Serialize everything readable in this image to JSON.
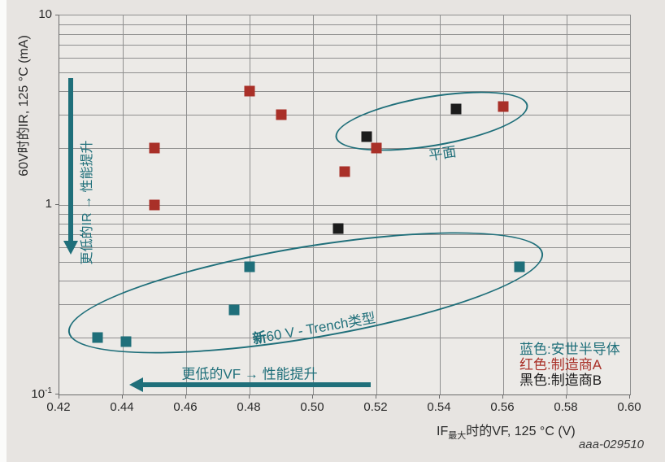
{
  "figure": {
    "watermark": "aaa-029510",
    "colors": {
      "teal": "#1f6f7a",
      "red": "#a93028",
      "black": "#1c1c1c",
      "grid": "#8f8f8f",
      "plot_bg": "#eceae7",
      "page_bg": "#e7e4e1"
    }
  },
  "chart_data": {
    "type": "scatter",
    "title": "",
    "ylabel": "60V时的IR, 125 °C (mA)",
    "xlabel": {
      "pre": "IF",
      "sub": "最大",
      "post": "时的VF, 125 °C (V)"
    },
    "xlim": [
      0.42,
      0.6
    ],
    "ylim": [
      0.1,
      10
    ],
    "y_scale": "log",
    "grid": {
      "vertical": [
        0.44,
        0.46,
        0.48,
        0.5,
        0.52,
        0.54,
        0.56,
        0.58
      ],
      "horizontal": [
        0.2,
        0.3,
        0.4,
        0.5,
        0.6,
        0.7,
        0.8,
        0.9,
        1,
        2,
        3,
        4,
        5,
        6,
        7,
        8,
        9
      ]
    },
    "x_ticks": [
      {
        "label": "0.42",
        "value": 0.42
      },
      {
        "label": "0.44",
        "value": 0.44
      },
      {
        "label": "0.46",
        "value": 0.46
      },
      {
        "label": "0.48",
        "value": 0.48
      },
      {
        "label": "0.50",
        "value": 0.5
      },
      {
        "label": "0.52",
        "value": 0.52
      },
      {
        "label": "0.54",
        "value": 0.54
      },
      {
        "label": "0.56",
        "value": 0.56
      },
      {
        "label": "0.58",
        "value": 0.58
      },
      {
        "label": "0.60",
        "value": 0.6
      }
    ],
    "y_ticks": [
      {
        "text": "10",
        "sup": "",
        "value": 10
      },
      {
        "text": "1",
        "sup": "",
        "value": 1
      },
      {
        "text": "10",
        "sup": "-1",
        "value": 0.1
      }
    ],
    "series": [
      {
        "name": "安世半导体 (蓝色)",
        "color_key": "teal",
        "points": [
          [
            0.432,
            0.2
          ],
          [
            0.441,
            0.19
          ],
          [
            0.475,
            0.28
          ],
          [
            0.48,
            0.47
          ],
          [
            0.565,
            0.47
          ]
        ]
      },
      {
        "name": "制造商A (红色)",
        "color_key": "red",
        "points": [
          [
            0.45,
            1.0
          ],
          [
            0.45,
            2.0
          ],
          [
            0.48,
            4.0
          ],
          [
            0.49,
            3.0
          ],
          [
            0.51,
            1.5
          ],
          [
            0.52,
            2.0
          ],
          [
            0.56,
            3.3
          ]
        ]
      },
      {
        "name": "制造商B (黑色)",
        "color_key": "black",
        "points": [
          [
            0.508,
            0.75
          ],
          [
            0.517,
            2.3
          ],
          [
            0.545,
            3.2
          ]
        ]
      }
    ],
    "annotations": {
      "planar": {
        "label": "平面"
      },
      "trench": {
        "label_prefix": "新",
        "label_rest": "60 V - Trench类型"
      },
      "lower_ir": {
        "text": "更低的IR → 性能提升"
      },
      "lower_vf": {
        "text": "更低的VF → 性能提升"
      }
    },
    "legend_position": "bottom-right-inside"
  },
  "legend": {
    "items": [
      {
        "label": "蓝色:安世半导体",
        "color_key": "teal"
      },
      {
        "label": "红色:制造商A",
        "color_key": "red"
      },
      {
        "label": "黑色:制造商B",
        "color_key": "black"
      }
    ]
  }
}
